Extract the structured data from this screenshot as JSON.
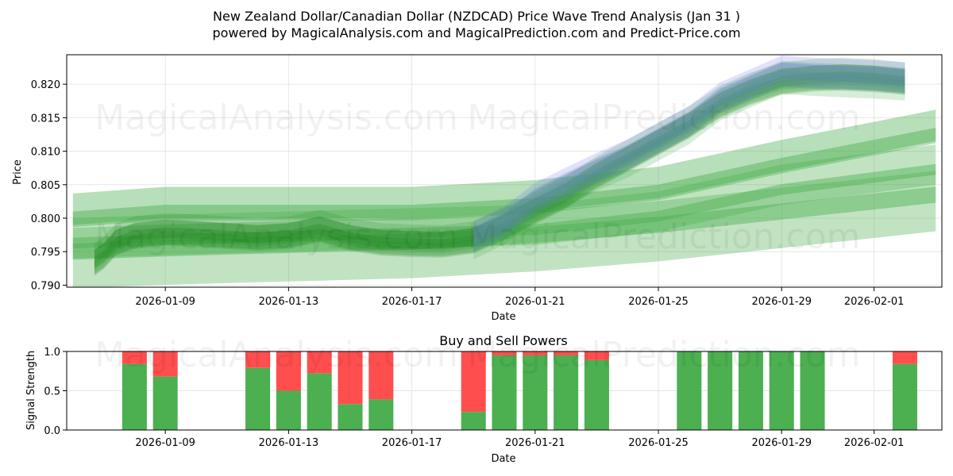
{
  "title_line1": "New Zealand Dollar/Canadian Dollar (NZDCAD) Price Wave Trend Analysis (Jan 31 )",
  "title_line2": "powered by MagicalAnalysis.com and MagicalPrediction.com and Predict-Price.com",
  "watermarks": [
    "MagicalAnalysis.com",
    "MagicalPrediction.com"
  ],
  "colors": {
    "history_band": "#228B22",
    "forecast_band": "#4CAF50",
    "blue_band": "#6a6aff",
    "buy": "#4CAF50",
    "sell": "#FF4444",
    "grid": "#e6e6e6"
  },
  "chart_data": [
    {
      "type": "area",
      "title": "",
      "xlabel": "Date",
      "ylabel": "Price",
      "xlim_days": [
        -3.2,
        25.2
      ],
      "ylim": [
        0.7897,
        0.8244
      ],
      "x_ticks": [
        {
          "day": 0,
          "label": "2026-01-09"
        },
        {
          "day": 4,
          "label": "2026-01-13"
        },
        {
          "day": 8,
          "label": "2026-01-17"
        },
        {
          "day": 12,
          "label": "2026-01-21"
        },
        {
          "day": 16,
          "label": "2026-01-25"
        },
        {
          "day": 20,
          "label": "2026-01-29"
        },
        {
          "day": 23,
          "label": "2026-02-01"
        }
      ],
      "y_ticks": [
        0.79,
        0.795,
        0.8,
        0.805,
        0.81,
        0.815,
        0.82
      ],
      "y_tick_labels": [
        "0.790",
        "0.795",
        "0.800",
        "0.805",
        "0.810",
        "0.815",
        "0.820"
      ],
      "grid": true,
      "series": [
        {
          "name": "history-wave",
          "x": [
            -2.3,
            -2,
            -1.6,
            -1,
            0,
            1,
            2,
            3,
            4,
            5,
            6,
            7,
            8,
            9,
            10,
            11,
            12,
            13,
            14,
            15,
            16,
            17,
            18,
            19,
            20,
            21,
            22,
            23,
            24
          ],
          "values": [
            0.7935,
            0.7945,
            0.7965,
            0.7975,
            0.798,
            0.7978,
            0.7975,
            0.7972,
            0.7975,
            0.7985,
            0.7972,
            0.7965,
            0.7963,
            0.7962,
            0.7968,
            0.7988,
            0.8012,
            0.8035,
            0.8065,
            0.809,
            0.8115,
            0.814,
            0.817,
            0.819,
            0.8205,
            0.821,
            0.8212,
            0.821,
            0.8205
          ]
        },
        {
          "name": "blue-wave",
          "x": [
            10,
            11,
            12,
            13,
            14,
            15,
            16,
            17,
            18,
            19,
            20,
            21,
            22,
            23,
            24
          ],
          "values": [
            0.7968,
            0.799,
            0.8025,
            0.8048,
            0.807,
            0.809,
            0.8115,
            0.814,
            0.8175,
            0.8195,
            0.8215,
            0.8212,
            0.821,
            0.8208,
            0.8205
          ]
        },
        {
          "name": "forecast-upper",
          "x": [
            -3,
            0,
            4,
            8,
            12,
            16,
            20,
            25
          ],
          "values": [
            0.8,
            0.801,
            0.801,
            0.801,
            0.802,
            0.804,
            0.808,
            0.8125
          ]
        },
        {
          "name": "forecast-middle",
          "x": [
            -3,
            0,
            4,
            8,
            12,
            16,
            20,
            25
          ],
          "values": [
            0.797,
            0.7975,
            0.798,
            0.7985,
            0.799,
            0.801,
            0.805,
            0.808
          ]
        },
        {
          "name": "forecast-lower",
          "x": [
            -3,
            0,
            4,
            8,
            12,
            16,
            20,
            25
          ],
          "values": [
            0.795,
            0.7955,
            0.796,
            0.7965,
            0.7975,
            0.799,
            0.801,
            0.8035
          ]
        }
      ]
    },
    {
      "type": "bar",
      "title": "Buy and Sell Powers",
      "xlabel": "Date",
      "ylabel": "Signal Strength",
      "xlim_days": [
        -3.2,
        25.2
      ],
      "ylim": [
        0,
        1
      ],
      "y_ticks": [
        0.0,
        0.5,
        1.0
      ],
      "y_tick_labels": [
        "0.0",
        "0.5",
        "1.0"
      ],
      "x_ticks": [
        {
          "day": 0,
          "label": "2026-01-09"
        },
        {
          "day": 4,
          "label": "2026-01-13"
        },
        {
          "day": 8,
          "label": "2026-01-17"
        },
        {
          "day": 12,
          "label": "2026-01-21"
        },
        {
          "day": 16,
          "label": "2026-01-25"
        },
        {
          "day": 20,
          "label": "2026-01-29"
        },
        {
          "day": 23,
          "label": "2026-02-01"
        }
      ],
      "bars": [
        {
          "day": -1,
          "buy": 0.84
        },
        {
          "day": 0,
          "buy": 0.68
        },
        {
          "day": 3,
          "buy": 0.79
        },
        {
          "day": 4,
          "buy": 0.5
        },
        {
          "day": 5,
          "buy": 0.72
        },
        {
          "day": 6,
          "buy": 0.33
        },
        {
          "day": 7,
          "buy": 0.39
        },
        {
          "day": 10,
          "buy": 0.23
        },
        {
          "day": 11,
          "buy": 0.95
        },
        {
          "day": 12,
          "buy": 0.95
        },
        {
          "day": 13,
          "buy": 0.95
        },
        {
          "day": 14,
          "buy": 0.89
        },
        {
          "day": 17,
          "buy": 1.0
        },
        {
          "day": 18,
          "buy": 1.0
        },
        {
          "day": 19,
          "buy": 1.0
        },
        {
          "day": 20,
          "buy": 1.0
        },
        {
          "day": 21,
          "buy": 1.0
        },
        {
          "day": 24,
          "buy": 0.84
        }
      ]
    }
  ]
}
